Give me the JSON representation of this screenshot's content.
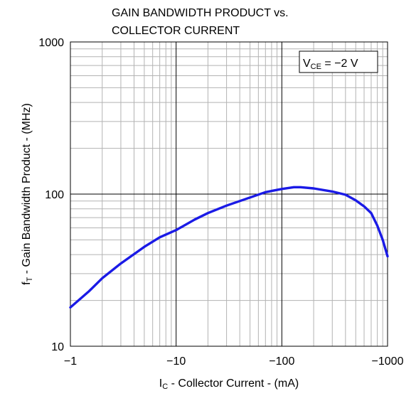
{
  "chart_data": {
    "type": "line",
    "title_line1": "GAIN BANDWIDTH PRODUCT vs.",
    "title_line2": "COLLECTOR CURRENT",
    "xlabel": "IC - Collector Current - (mA)",
    "ylabel": "fT - Gain Bandwidth Product - (MHz)",
    "xscale": "log",
    "yscale": "log",
    "x_magnitude_range": [
      1,
      1000
    ],
    "ylim": [
      10,
      1000
    ],
    "x_tick_labels": [
      "−1",
      "−10",
      "−100",
      "−1000"
    ],
    "y_tick_labels": [
      "10",
      "100",
      "1000"
    ],
    "x_ticks": [
      1,
      10,
      100,
      1000
    ],
    "y_ticks": [
      10,
      100,
      1000
    ],
    "grid": true,
    "annotation": "VCE = −2 V",
    "line_color": "#1a1ae6",
    "series": [
      {
        "x": [
          -1,
          -1.5,
          -2,
          -3,
          -5,
          -7,
          -10,
          -15,
          -20,
          -30,
          -50,
          -70,
          -100,
          -130,
          -150,
          -200,
          -300,
          -400,
          -500,
          -600,
          -700,
          -800,
          -900,
          -1000
        ],
        "y": [
          18,
          23,
          28,
          35,
          45,
          52,
          58,
          68,
          75,
          84,
          95,
          103,
          108,
          111,
          111,
          109,
          104,
          99,
          91,
          83,
          75,
          62,
          50,
          39
        ]
      }
    ]
  }
}
